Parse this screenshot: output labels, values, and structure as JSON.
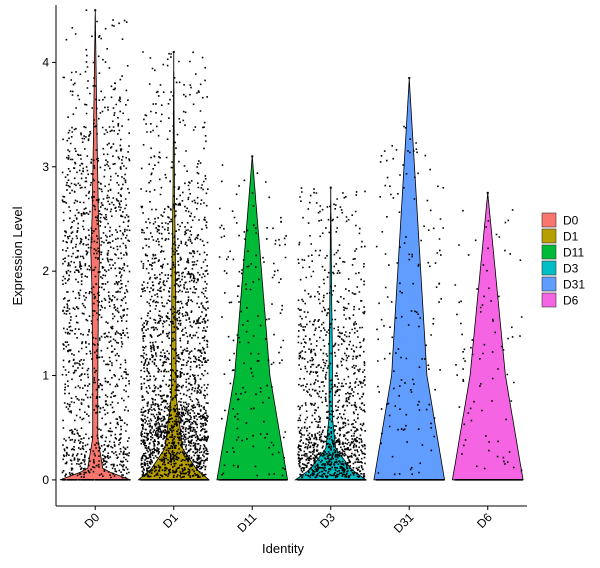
{
  "chart_data": {
    "type": "violin",
    "xlabel": "Identity",
    "ylabel": "Expression Level",
    "ylim": [
      -0.25,
      4.55
    ],
    "yticks": [
      0,
      1,
      2,
      3,
      4
    ],
    "categories": [
      "D0",
      "D1",
      "D11",
      "D3",
      "D31",
      "D6"
    ],
    "legend_position": "right",
    "grid": false,
    "series": [
      {
        "name": "D0",
        "color": "#F8766D",
        "max": 4.5,
        "n_points": 1500,
        "zero_peak": 0.08,
        "profile": [
          [
            0,
            0.55
          ],
          [
            0.1,
            0.12
          ],
          [
            0.4,
            0.04
          ],
          [
            1.0,
            0.04
          ],
          [
            1.8,
            0.05
          ],
          [
            2.2,
            0.07
          ],
          [
            2.5,
            0.05
          ],
          [
            3.2,
            0.03
          ],
          [
            4.5,
            0.0
          ]
        ]
      },
      {
        "name": "D1",
        "color": "#B79F00",
        "max": 4.1,
        "n_points": 3000,
        "zero_peak": 0.3,
        "profile": [
          [
            0,
            1.0
          ],
          [
            0.1,
            0.65
          ],
          [
            0.3,
            0.25
          ],
          [
            0.8,
            0.07
          ],
          [
            1.5,
            0.06
          ],
          [
            2.0,
            0.05
          ],
          [
            2.8,
            0.02
          ],
          [
            4.1,
            0.0
          ]
        ]
      },
      {
        "name": "D11",
        "color": "#00BA38",
        "max": 3.1,
        "n_points": 1200,
        "zero_peak": 0.85,
        "profile": [
          [
            0,
            0.008
          ],
          [
            1.0,
            0.004
          ],
          [
            3.1,
            0.0
          ]
        ]
      },
      {
        "name": "D3",
        "color": "#00BFC4",
        "max": 2.8,
        "n_points": 1600,
        "zero_peak": 0.25,
        "profile": [
          [
            0,
            0.85
          ],
          [
            0.1,
            0.5
          ],
          [
            0.3,
            0.12
          ],
          [
            0.6,
            0.04
          ],
          [
            1.2,
            0.04
          ],
          [
            1.8,
            0.02
          ],
          [
            2.8,
            0.0
          ]
        ]
      },
      {
        "name": "D31",
        "color": "#619CFF",
        "max": 3.85,
        "n_points": 1600,
        "zero_peak": 0.9,
        "profile": [
          [
            0,
            0.008
          ],
          [
            1.0,
            0.004
          ],
          [
            3.85,
            0.0
          ]
        ]
      },
      {
        "name": "D6",
        "color": "#F564E3",
        "max": 2.75,
        "n_points": 450,
        "zero_peak": 0.8,
        "profile": [
          [
            0,
            0.008
          ],
          [
            1.0,
            0.004
          ],
          [
            2.75,
            0.0
          ]
        ]
      }
    ]
  }
}
